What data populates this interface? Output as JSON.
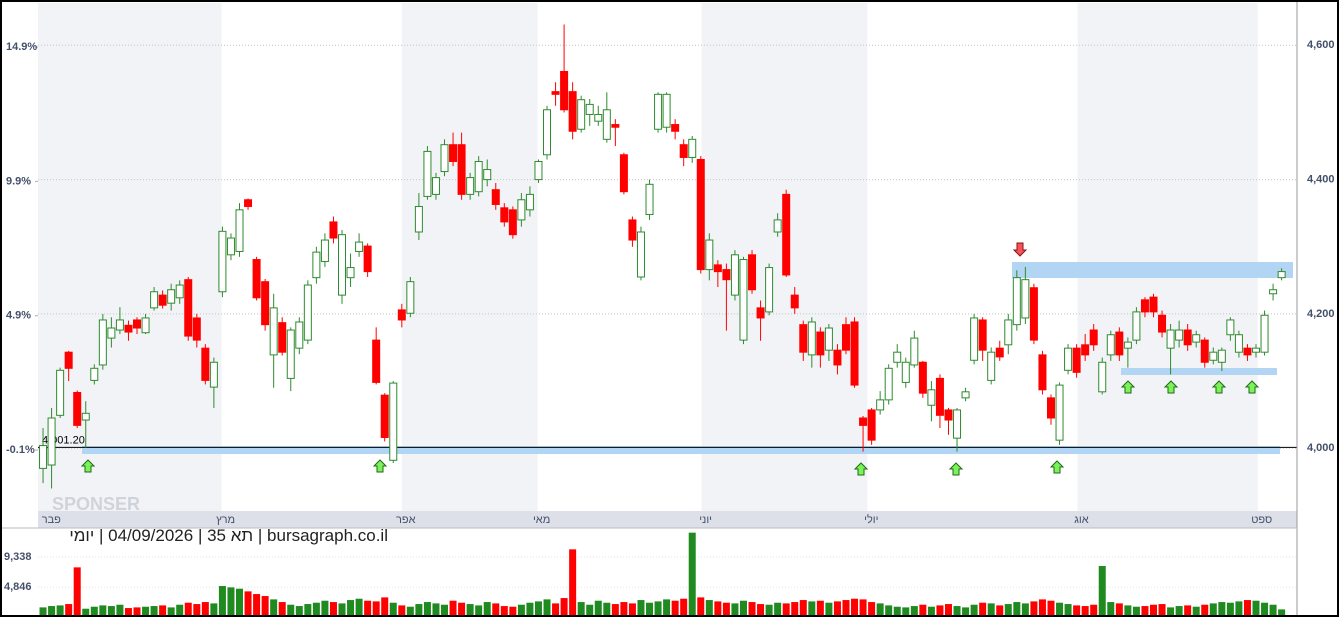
{
  "chart_data": {
    "type": "candlestick",
    "title": "bursagraph.co.il | תא 35 | 04/09/2026 | יומי",
    "watermark": "SPONSER",
    "open": [
      3970,
      3975,
      4049,
      4143,
      4083,
      4042,
      4101,
      4124,
      4164,
      4176,
      4183,
      4191,
      4172,
      4209,
      4228,
      4216,
      4224,
      4251,
      4194,
      4149,
      4091,
      4233,
      4288,
      4293,
      4370,
      4281,
      4248,
      4139,
      4187,
      4104,
      4149,
      4161,
      4254,
      4278,
      4337,
      4228,
      4254,
      4293,
      4301,
      4161,
      4079,
      3982,
      4206,
      4201,
      4322,
      4375,
      4378,
      4412,
      4452,
      4452,
      4378,
      4382,
      4400,
      4385,
      4358,
      4355,
      4340,
      4355,
      4400,
      4437,
      4531,
      4561,
      4531,
      4475,
      4497,
      4487,
      4460,
      4482,
      4437,
      4340,
      4255,
      4348,
      4475,
      4478,
      4482,
      4452,
      4433,
      4430,
      4266,
      4273,
      4266,
      4228,
      4161,
      4288,
      4209,
      4203,
      4322,
      4378,
      4228,
      4184,
      4139,
      4173,
      4146,
      4146,
      4184,
      4188,
      4045,
      4057,
      4057,
      4072,
      4128,
      4098,
      4124,
      4128,
      4064,
      4104,
      4057,
      4015,
      4075,
      4131,
      4191,
      4101,
      4149,
      4154,
      4184,
      4194,
      4239,
      4139,
      4075,
      4012,
      4116,
      4149,
      4154,
      4176,
      4084,
      4139,
      4173,
      4149,
      4161,
      4221,
      4225,
      4198,
      4149,
      4161,
      4176,
      4158,
      4161,
      4131,
      4128,
      4169,
      4143,
      4149,
      4143,
      4143,
      4230,
      4254
    ],
    "high": [
      4030,
      4060,
      4120,
      4145,
      4086,
      4070,
      4125,
      4200,
      4195,
      4210,
      4190,
      4195,
      4200,
      4240,
      4235,
      4245,
      4250,
      4255,
      4200,
      4155,
      4135,
      4330,
      4320,
      4365,
      4372,
      4285,
      4252,
      4230,
      4195,
      4180,
      4195,
      4250,
      4300,
      4320,
      4345,
      4325,
      4290,
      4320,
      4305,
      4180,
      4082,
      4100,
      4215,
      4255,
      4380,
      4450,
      4410,
      4460,
      4470,
      4470,
      4410,
      4435,
      4430,
      4395,
      4365,
      4360,
      4380,
      4390,
      4430,
      4510,
      4545,
      4631,
      4545,
      4525,
      4520,
      4510,
      4530,
      4490,
      4440,
      4345,
      4330,
      4400,
      4530,
      4530,
      4490,
      4460,
      4465,
      4435,
      4320,
      4280,
      4275,
      4295,
      4285,
      4295,
      4220,
      4275,
      4350,
      4385,
      4240,
      4190,
      4195,
      4180,
      4185,
      4155,
      4195,
      4195,
      4048,
      4060,
      4085,
      4125,
      4155,
      4135,
      4175,
      4130,
      4100,
      4110,
      4060,
      4060,
      4090,
      4200,
      4195,
      4150,
      4160,
      4200,
      4265,
      4270,
      4245,
      4145,
      4080,
      4098,
      4155,
      4155,
      4170,
      4185,
      4135,
      4175,
      4180,
      4165,
      4210,
      4225,
      4230,
      4205,
      4185,
      4190,
      4185,
      4175,
      4165,
      4150,
      4150,
      4195,
      4175,
      4155,
      4155,
      4205,
      4245,
      4268
    ],
    "low": [
      3948,
      3940,
      4045,
      4100,
      4030,
      4001,
      4095,
      4117,
      4150,
      4170,
      4160,
      4170,
      4170,
      4205,
      4208,
      4205,
      4215,
      4160,
      4150,
      4095,
      4060,
      4225,
      4280,
      4285,
      4355,
      4220,
      4175,
      4090,
      4138,
      4085,
      4140,
      4155,
      4245,
      4270,
      4305,
      4215,
      4240,
      4285,
      4255,
      4095,
      4010,
      3978,
      4180,
      4195,
      4310,
      4370,
      4370,
      4405,
      4420,
      4370,
      4370,
      4375,
      4390,
      4355,
      4330,
      4312,
      4330,
      4345,
      4395,
      4430,
      4510,
      4500,
      4460,
      4470,
      4480,
      4480,
      4455,
      4450,
      4378,
      4300,
      4250,
      4340,
      4470,
      4470,
      4460,
      4420,
      4425,
      4260,
      4250,
      4240,
      4175,
      4220,
      4155,
      4230,
      4160,
      4198,
      4315,
      4255,
      4200,
      4130,
      4120,
      4120,
      4130,
      4110,
      4140,
      4090,
      3995,
      4005,
      4050,
      4065,
      4120,
      4090,
      4120,
      4075,
      4040,
      4030,
      4020,
      3995,
      4070,
      4125,
      4130,
      4095,
      4130,
      4140,
      4175,
      4185,
      4155,
      4080,
      4035,
      4005,
      4110,
      4105,
      4130,
      4145,
      4080,
      4130,
      4130,
      4120,
      4155,
      4195,
      4195,
      4165,
      4110,
      4150,
      4145,
      4150,
      4120,
      4125,
      4115,
      4160,
      4135,
      4130,
      4135,
      4138,
      4220,
      4250
    ],
    "close": [
      4004,
      4045,
      4116,
      4119,
      4034,
      4052,
      4119,
      4191,
      4179,
      4191,
      4173,
      4179,
      4194,
      4233,
      4213,
      4236,
      4243,
      4167,
      4161,
      4101,
      4128,
      4323,
      4313,
      4355,
      4360,
      4224,
      4184,
      4209,
      4143,
      4176,
      4188,
      4243,
      4292,
      4310,
      4313,
      4318,
      4269,
      4307,
      4263,
      4098,
      4016,
      4097,
      4191,
      4248,
      4360,
      4442,
      4403,
      4452,
      4427,
      4378,
      4403,
      4427,
      4415,
      4363,
      4337,
      4318,
      4370,
      4378,
      4427,
      4504,
      4527,
      4504,
      4472,
      4519,
      4512,
      4497,
      4504,
      4478,
      4382,
      4310,
      4322,
      4393,
      4527,
      4527,
      4472,
      4433,
      4460,
      4266,
      4310,
      4263,
      4251,
      4288,
      4281,
      4236,
      4194,
      4269,
      4340,
      4258,
      4209,
      4143,
      4188,
      4139,
      4179,
      4124,
      4146,
      4094,
      4034,
      4012,
      4072,
      4119,
      4143,
      4128,
      4164,
      4082,
      4087,
      4049,
      4042,
      4057,
      4084,
      4194,
      4146,
      4143,
      4136,
      4191,
      4254,
      4251,
      4161,
      4087,
      4045,
      4094,
      4149,
      4113,
      4139,
      4154,
      4128,
      4169,
      4139,
      4158,
      4203,
      4203,
      4203,
      4173,
      4176,
      4176,
      4154,
      4169,
      4128,
      4143,
      4146,
      4191,
      4169,
      4139,
      4149,
      4198,
      4236,
      4263
    ],
    "up_color": "#2e8b2e",
    "down_color": "#ff0000",
    "xlim": [
      -0.59,
      146.8
    ],
    "xticks": [
      {
        "value": 0.5,
        "label": "פבר"
      },
      {
        "value": 20.9,
        "label": "מרץ"
      },
      {
        "value": 42.0,
        "label": "אפר"
      },
      {
        "value": 57.9,
        "label": "מאי"
      },
      {
        "value": 77.1,
        "label": "יוני"
      },
      {
        "value": 96.5,
        "label": "יולי"
      },
      {
        "value": 121.1,
        "label": "אוג"
      },
      {
        "value": 142.2,
        "label": "ספט"
      }
    ],
    "ylim": [
      3908,
      4663
    ],
    "yticks": [
      {
        "value": 4000,
        "label": "4,000"
      },
      {
        "value": 4200,
        "label": "4,200"
      },
      {
        "value": 4400,
        "label": "4,400"
      },
      {
        "value": 4600,
        "label": "4,600"
      }
    ],
    "y2lim": [
      -2.33,
      16.54
    ],
    "y2ticks": [
      {
        "value": -0.1,
        "label": "-0.1%"
      },
      {
        "value": 4.9,
        "label": "4.9%"
      },
      {
        "value": 9.9,
        "label": "9.9%"
      },
      {
        "value": 14.9,
        "label": "14.9%"
      }
    ],
    "reference_line": {
      "value": 4001.2,
      "label": "4,001.20"
    },
    "grid": true,
    "volume": {
      "values": [
        1800,
        2000,
        2100,
        2300,
        7800,
        1600,
        1900,
        2100,
        2000,
        2200,
        1700,
        1800,
        1900,
        2000,
        2100,
        1800,
        2200,
        2500,
        2300,
        2600,
        2400,
        5000,
        4800,
        4600,
        4200,
        3800,
        3500,
        3000,
        2600,
        2200,
        2000,
        2300,
        2500,
        2800,
        2600,
        2400,
        2900,
        3100,
        2800,
        2700,
        3300,
        2500,
        2100,
        1900,
        2300,
        2600,
        2400,
        2200,
        2800,
        2500,
        2300,
        2100,
        2600,
        2400,
        2000,
        1900,
        2200,
        2500,
        2700,
        3000,
        2400,
        3200,
        10500,
        2600,
        2200,
        2800,
        2500,
        2300,
        2600,
        2400,
        2900,
        2500,
        2700,
        3000,
        2800,
        3100,
        13000,
        3300,
        2900,
        2700,
        2500,
        2400,
        2800,
        2600,
        2300,
        2200,
        2500,
        2400,
        2600,
        2900,
        2700,
        2800,
        2500,
        2700,
        2900,
        3100,
        3000,
        2600,
        2400,
        2100,
        1900,
        1800,
        2000,
        2200,
        1900,
        2100,
        2300,
        2000,
        1800,
        2200,
        2500,
        2400,
        2100,
        2300,
        2600,
        2400,
        2700,
        3000,
        2800,
        2500,
        2300,
        2100,
        2000,
        2200,
        8000,
        2600,
        2400,
        2100,
        1900,
        2000,
        2200,
        2300,
        1800,
        2000,
        2100,
        1900,
        2200,
        2400,
        2600,
        2500,
        2700,
        2900,
        2800,
        2500,
        2200,
        1500
      ],
      "ylim": [
        0,
        13400
      ],
      "yticks": [
        {
          "value": 4846,
          "label": "4,846"
        },
        {
          "value": 9338,
          "label": "9,338"
        }
      ]
    }
  }
}
